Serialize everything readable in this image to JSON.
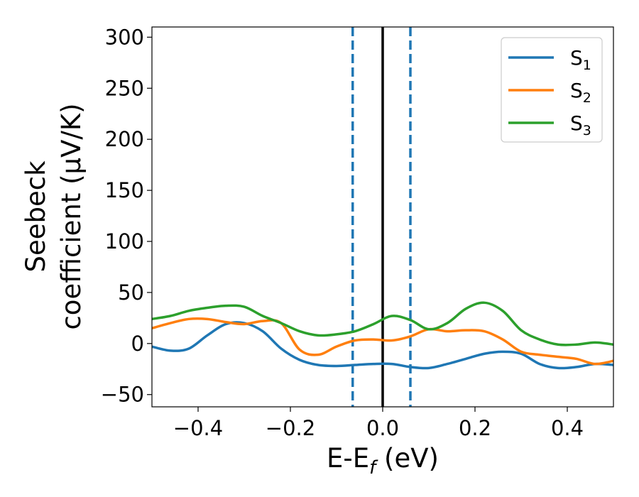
{
  "chart_data": {
    "type": "line",
    "xlabel": "E-E",
    "xlabel_sub": "f",
    "xlabel_unit": " (eV)",
    "ylabel_line1": "Seebeck",
    "ylabel_line2": "coefficient  (μV/K)",
    "xlim": [
      -0.5,
      0.5
    ],
    "ylim": [
      -62,
      310
    ],
    "xticks": [
      -0.4,
      -0.2,
      0.0,
      0.2,
      0.4
    ],
    "xtick_labels": [
      "−0.4",
      "−0.2",
      "0.0",
      "0.2",
      "0.4"
    ],
    "yticks": [
      -50,
      0,
      50,
      100,
      150,
      200,
      250,
      300
    ],
    "ytick_labels": [
      "−50",
      "0",
      "50",
      "100",
      "150",
      "200",
      "250",
      "300"
    ],
    "grid": false,
    "legend_position": "top-right",
    "vlines": [
      {
        "x": -0.065,
        "style": "dashed",
        "color": "#1f77b4"
      },
      {
        "x": 0.0,
        "style": "solid",
        "color": "#000000"
      },
      {
        "x": 0.06,
        "style": "dashed",
        "color": "#1f77b4"
      }
    ],
    "series": [
      {
        "name": "S",
        "sub": "1",
        "color": "#1f77b4",
        "x": [
          -0.5,
          -0.46,
          -0.42,
          -0.38,
          -0.34,
          -0.3,
          -0.26,
          -0.22,
          -0.18,
          -0.14,
          -0.1,
          -0.06,
          -0.02,
          0.02,
          0.06,
          0.1,
          0.14,
          0.18,
          0.22,
          0.26,
          0.3,
          0.34,
          0.38,
          0.42,
          0.46,
          0.5
        ],
        "y": [
          -3,
          -7,
          -5,
          8,
          19,
          20,
          12,
          -5,
          -16,
          -21,
          -22,
          -21,
          -20,
          -20,
          -23,
          -24,
          -20,
          -15,
          -10,
          -8,
          -10,
          -20,
          -24,
          -23,
          -20,
          -21
        ]
      },
      {
        "name": "S",
        "sub": "2",
        "color": "#ff7f0e",
        "x": [
          -0.5,
          -0.46,
          -0.42,
          -0.38,
          -0.34,
          -0.3,
          -0.26,
          -0.22,
          -0.18,
          -0.14,
          -0.1,
          -0.06,
          -0.02,
          0.02,
          0.06,
          0.1,
          0.14,
          0.18,
          0.22,
          0.26,
          0.3,
          0.34,
          0.38,
          0.42,
          0.46,
          0.5
        ],
        "y": [
          15,
          20,
          24,
          24,
          21,
          19,
          22,
          20,
          -6,
          -11,
          -3,
          3,
          4,
          3,
          7,
          14,
          12,
          13,
          12,
          4,
          -8,
          -11,
          -13,
          -15,
          -20,
          -17
        ]
      },
      {
        "name": "S",
        "sub": "3",
        "color": "#2ca02c",
        "x": [
          -0.5,
          -0.46,
          -0.42,
          -0.38,
          -0.34,
          -0.3,
          -0.26,
          -0.22,
          -0.18,
          -0.14,
          -0.1,
          -0.06,
          -0.02,
          0.02,
          0.06,
          0.1,
          0.14,
          0.18,
          0.22,
          0.26,
          0.3,
          0.34,
          0.38,
          0.42,
          0.46,
          0.5
        ],
        "y": [
          24,
          27,
          32,
          35,
          37,
          36,
          27,
          20,
          12,
          8,
          9,
          12,
          19,
          27,
          23,
          14,
          20,
          34,
          40,
          32,
          13,
          4,
          -1,
          -1,
          1,
          -1
        ]
      }
    ]
  }
}
